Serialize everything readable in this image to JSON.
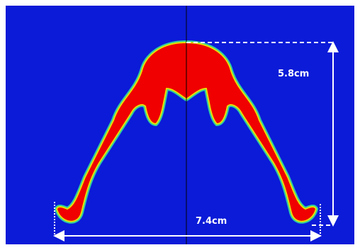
{
  "annotations": {
    "height": "5.8cm",
    "width": "7.4cm"
  }
}
